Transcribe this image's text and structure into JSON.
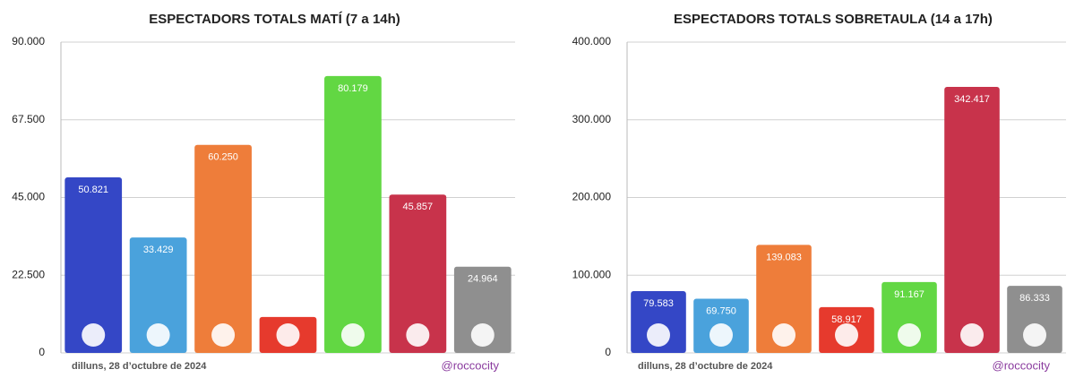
{
  "chart_data": [
    {
      "type": "bar",
      "title": "ESPECTADORS TOTALS MATÍ (7 a 14h)",
      "categories": [
        null,
        null,
        null,
        null,
        null,
        null,
        null
      ],
      "values": [
        50821,
        33429,
        60250,
        10400,
        80179,
        45857,
        24964
      ],
      "value_labels": [
        "50.821",
        "33.429",
        "60.250",
        null,
        "80.179",
        "45.857",
        "24.964"
      ],
      "colors": [
        "#3447c6",
        "#4aa2dc",
        "#ee7d3a",
        "#e63a2d",
        "#62d743",
        "#c8334b",
        "#8f8f8f"
      ],
      "ylim": [
        0,
        90000
      ],
      "yticks": [
        0,
        {
          "value": 22500,
          "label": "22.500"
        },
        {
          "value": 45000,
          "label": "45.000"
        },
        {
          "value": 67500,
          "label": "67.500"
        },
        {
          "value": 90000,
          "label": "90.000"
        }
      ],
      "grid": true,
      "date": "dilluns, 28 d’octubre de 2024",
      "credit": "@roccocity"
    },
    {
      "type": "bar",
      "title": "ESPECTADORS TOTALS SOBRETAULA (14 a 17h)",
      "categories": [
        null,
        null,
        null,
        null,
        null,
        null,
        null
      ],
      "values": [
        79583,
        69750,
        139083,
        58917,
        91167,
        342417,
        86333
      ],
      "value_labels": [
        "79.583",
        "69.750",
        "139.083",
        "58.917",
        "91.167",
        "342.417",
        "86.333"
      ],
      "colors": [
        "#3447c6",
        "#4aa2dc",
        "#ee7d3a",
        "#e63a2d",
        "#62d743",
        "#c8334b",
        "#8f8f8f"
      ],
      "ylim": [
        0,
        400000
      ],
      "yticks": [
        0,
        {
          "value": 100000,
          "label": "100.000"
        },
        {
          "value": 200000,
          "label": "200.000"
        },
        {
          "value": 300000,
          "label": "300.000"
        },
        {
          "value": 400000,
          "label": "400.000"
        }
      ],
      "grid": true,
      "date": "dilluns, 28 d’octubre de 2024",
      "credit": "@roccocity"
    }
  ]
}
